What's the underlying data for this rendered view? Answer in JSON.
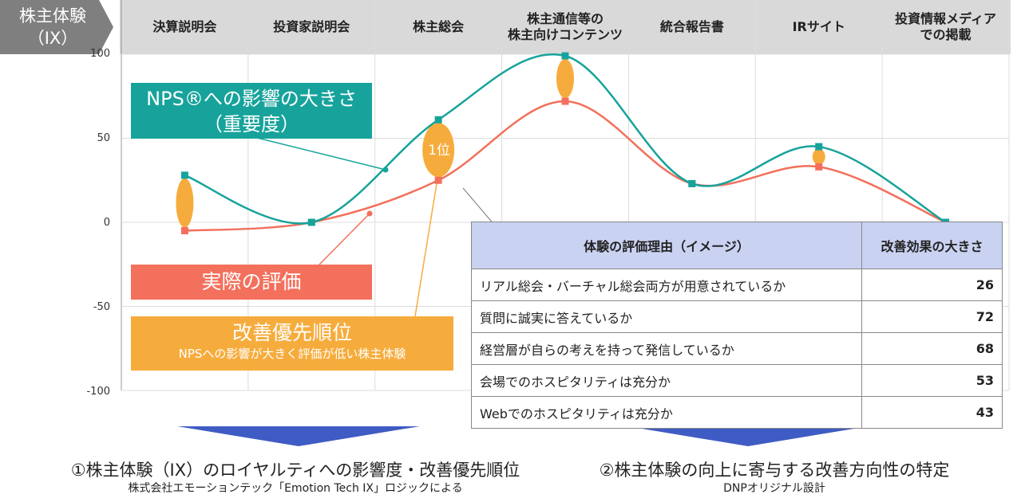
{
  "badge": {
    "line1": "株主体験",
    "line2": "（IX）"
  },
  "labels": {
    "nps_line1": "NPS®への影響の大きさ",
    "nps_line2": "（重要度）",
    "actual": "実際の評価",
    "priority_title": "改善優先順位",
    "priority_sub": "NPSへの影響が大きく評価が低い株主体験",
    "rank": "1位"
  },
  "table": {
    "header_reason": "体験の評価理由（イメージ）",
    "header_effect": "改善効果の大きさ",
    "rows": [
      {
        "reason": "リアル総会・バーチャル総会両方が用意されているか",
        "value": "26"
      },
      {
        "reason": "質問に誠実に答えているか",
        "value": "72"
      },
      {
        "reason": "経営層が自らの考えを持って発信しているか",
        "value": "68"
      },
      {
        "reason": "会場でのホスピタリティは充分か",
        "value": "53"
      },
      {
        "reason": "Webでのホスピタリティは充分か",
        "value": "43"
      }
    ]
  },
  "bottom": {
    "left_title": "①株主体験（IX）のロイヤルティへの影響度・改善優先順位",
    "left_sub": "株式会社エモーションテック「Emotion Tech IX」ロジックによる",
    "right_title": "②株主体験の向上に寄与する改善方向性の特定",
    "right_sub": "DNPオリジナル設計"
  },
  "chart_data": {
    "type": "line",
    "categories": [
      "決算説明会",
      "投資家説明会",
      "株主総会",
      "株主通信等の\n株主向けコンテンツ",
      "統合報告書",
      "IRサイト",
      "投資情報メディア\nでの掲載"
    ],
    "ylim": [
      -100,
      100
    ],
    "yticks": [
      100,
      50,
      0,
      -50,
      -100
    ],
    "grid": true,
    "series": [
      {
        "name": "NPS®への影響の大きさ（重要度）",
        "color": "#17a39b",
        "values": [
          28,
          0,
          61,
          99,
          23,
          45,
          0
        ]
      },
      {
        "name": "実際の評価",
        "color": "#f3705c",
        "values": [
          -5,
          0,
          25,
          72,
          23,
          33,
          0
        ]
      }
    ],
    "gap_markers": [
      0,
      2,
      3,
      5
    ],
    "priority_rank": {
      "index": 2,
      "label": "1位"
    }
  },
  "colors": {
    "nps": "#17a39b",
    "actual": "#f3705c",
    "priority": "#f6ac3c",
    "header_bg": "#d9d9d9",
    "table_header": "#cad2f2",
    "arrow": "#3f5bc4"
  }
}
